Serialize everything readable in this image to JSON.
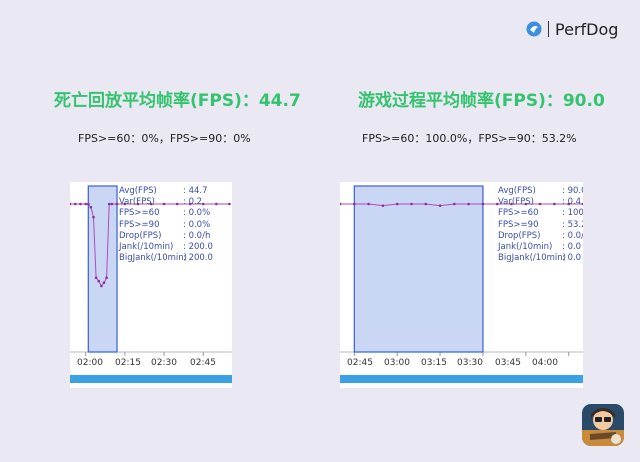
{
  "brand": {
    "name": "PerfDog",
    "logo_icon": "perfdog-logo-icon"
  },
  "left": {
    "title": "死亡回放平均帧率(FPS)：44.7",
    "subtitle": "FPS>=60：0%，FPS>=90：0%",
    "stats": [
      {
        "label": "Avg(FPS)",
        "value": ": 44.7"
      },
      {
        "label": "Var(FPS)",
        "value": ": 0.2"
      },
      {
        "label": "FPS>=60",
        "value": ": 0.0%"
      },
      {
        "label": "FPS>=90",
        "value": ": 0.0%"
      },
      {
        "label": "Drop(FPS)",
        "value": ": 0.0/h"
      },
      {
        "label": "Jank(/10min)",
        "value": ": 200.0"
      },
      {
        "label": "BigJank(/10min)",
        "value": ": 200.0"
      }
    ],
    "xticks": [
      "02:00",
      "02:15",
      "02:30",
      "02:45"
    ]
  },
  "right": {
    "title": "游戏过程平均帧率(FPS)：90.0",
    "subtitle": "FPS>=60：100.0%，FPS>=90：53.2%",
    "stats": [
      {
        "label": "Avg(FPS)",
        "value": ": 90.0"
      },
      {
        "label": "Var(FPS)",
        "value": ": 0.4"
      },
      {
        "label": "FPS>=60",
        "value": ": 100.0%"
      },
      {
        "label": "FPS>=90",
        "value": ": 53.2%"
      },
      {
        "label": "Drop(FPS)",
        "value": ": 0.0/h"
      },
      {
        "label": "Jank(/10min)",
        "value": ": 0.0"
      },
      {
        "label": "BigJank(/10min)",
        "value": ": 0.0"
      }
    ],
    "xticks": [
      "02:45",
      "03:00",
      "03:15",
      "03:30",
      "03:45",
      "04:00"
    ]
  },
  "colors": {
    "title_green": "#34c36e",
    "line": "#b24bb4",
    "point": "#8a2d9a",
    "selection_fill": "#c9d7f5",
    "selection_border": "#3b5fd0",
    "scrollbar": "#3aa1e6"
  },
  "game_icon": "game-character-icon",
  "chart_data": [
    {
      "type": "line",
      "title": "死亡回放平均帧率(FPS)：44.7",
      "xlabel": "",
      "ylabel": "FPS",
      "x": [
        "01:54",
        "01:56",
        "01:58",
        "02:00",
        "02:01",
        "02:02",
        "02:03",
        "02:04",
        "02:05",
        "02:06",
        "02:07",
        "02:08",
        "02:09",
        "02:10",
        "02:12",
        "02:15",
        "02:20",
        "02:25",
        "02:30",
        "02:35",
        "02:40",
        "02:45",
        "02:50",
        "02:55"
      ],
      "series": [
        {
          "values": [
            90,
            90,
            90,
            90,
            90,
            88,
            82,
            45,
            43,
            40,
            42,
            45,
            90,
            90,
            90,
            90,
            90,
            90,
            90,
            90,
            90,
            90,
            90,
            90
          ]
        }
      ],
      "selection": {
        "from": "02:01",
        "to": "02:12"
      },
      "xticks": [
        "02:00",
        "02:15",
        "02:30",
        "02:45"
      ]
    },
    {
      "type": "line",
      "title": "游戏过程平均帧率(FPS)：90.0",
      "xlabel": "",
      "ylabel": "FPS",
      "x": [
        "02:35",
        "02:40",
        "02:45",
        "02:50",
        "02:55",
        "03:00",
        "03:05",
        "03:10",
        "03:15",
        "03:20",
        "03:25",
        "03:30",
        "03:35",
        "03:40",
        "03:45",
        "03:50",
        "03:55",
        "04:00",
        "04:05"
      ],
      "series": [
        {
          "values": [
            90,
            90,
            90,
            90,
            89,
            90,
            90,
            90,
            89,
            90,
            90,
            90,
            90,
            90,
            90,
            90,
            90,
            90,
            90
          ]
        }
      ],
      "selection": {
        "from": "02:45",
        "to": "03:30"
      },
      "xticks": [
        "02:45",
        "03:00",
        "03:15",
        "03:30",
        "03:45",
        "04:00"
      ]
    }
  ]
}
